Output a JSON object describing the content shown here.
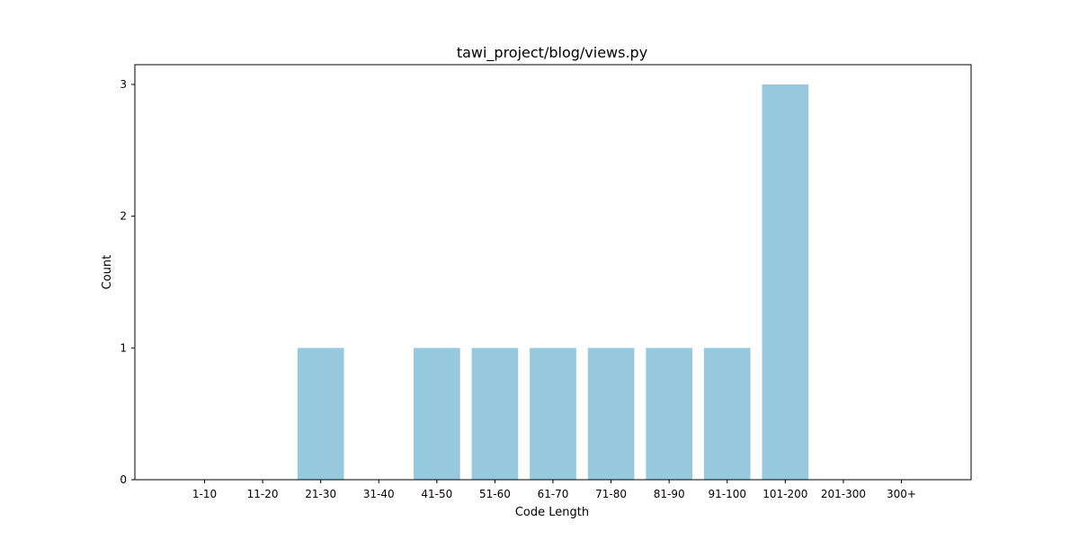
{
  "chart_data": {
    "type": "bar",
    "title": "tawi_project/blog/views.py",
    "xlabel": "Code Length",
    "ylabel": "Count",
    "categories": [
      "1-10",
      "11-20",
      "21-30",
      "31-40",
      "41-50",
      "51-60",
      "61-70",
      "71-80",
      "81-90",
      "91-100",
      "101-200",
      "201-300",
      "300+"
    ],
    "values": [
      0,
      0,
      1,
      0,
      1,
      1,
      1,
      1,
      1,
      1,
      3,
      0,
      0
    ],
    "yticks": [
      0,
      1,
      2,
      3
    ],
    "ylim": [
      0,
      3.15
    ],
    "grid": false,
    "legend": "none",
    "bar_color": "#96c9dd"
  }
}
